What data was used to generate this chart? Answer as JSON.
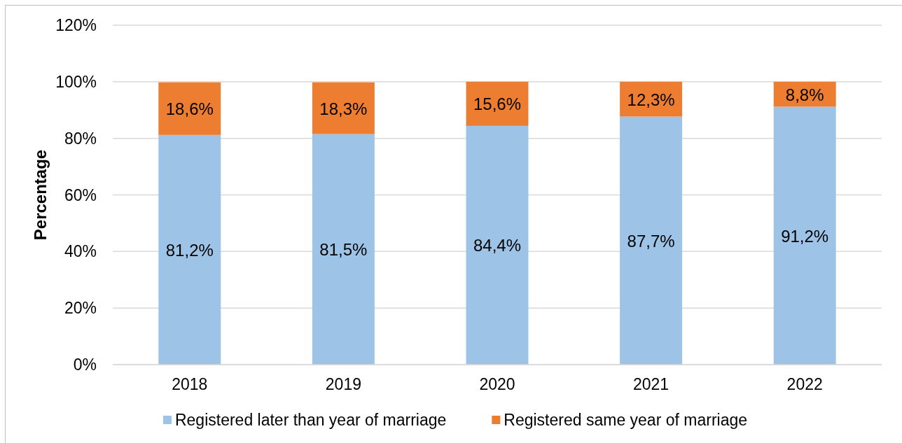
{
  "chart_data": {
    "type": "bar",
    "stacked": true,
    "ylabel": "Percentage",
    "categories": [
      "2018",
      "2019",
      "2020",
      "2021",
      "2022"
    ],
    "series": [
      {
        "name": "Registered later than year of marriage",
        "color": "#9dc3e6",
        "values": [
          81.2,
          81.5,
          84.4,
          87.7,
          91.2
        ],
        "value_labels": [
          "81,2%",
          "81,5%",
          "84,4%",
          "87,7%",
          "91,2%"
        ]
      },
      {
        "name": "Registered same year of marriage",
        "color": "#ed7d31",
        "values": [
          18.6,
          18.3,
          15.6,
          12.3,
          8.8
        ],
        "value_labels": [
          "18,6%",
          "18,3%",
          "15,6%",
          "12,3%",
          "8,8%"
        ]
      }
    ],
    "ylim": [
      0,
      120
    ],
    "yticks": [
      {
        "value": 0,
        "label": "0%"
      },
      {
        "value": 20,
        "label": "20%"
      },
      {
        "value": 40,
        "label": "40%"
      },
      {
        "value": 60,
        "label": "60%"
      },
      {
        "value": 80,
        "label": "80%"
      },
      {
        "value": 100,
        "label": "100%"
      },
      {
        "value": 120,
        "label": "120%"
      }
    ],
    "grid": "y",
    "legend": "bottom"
  }
}
